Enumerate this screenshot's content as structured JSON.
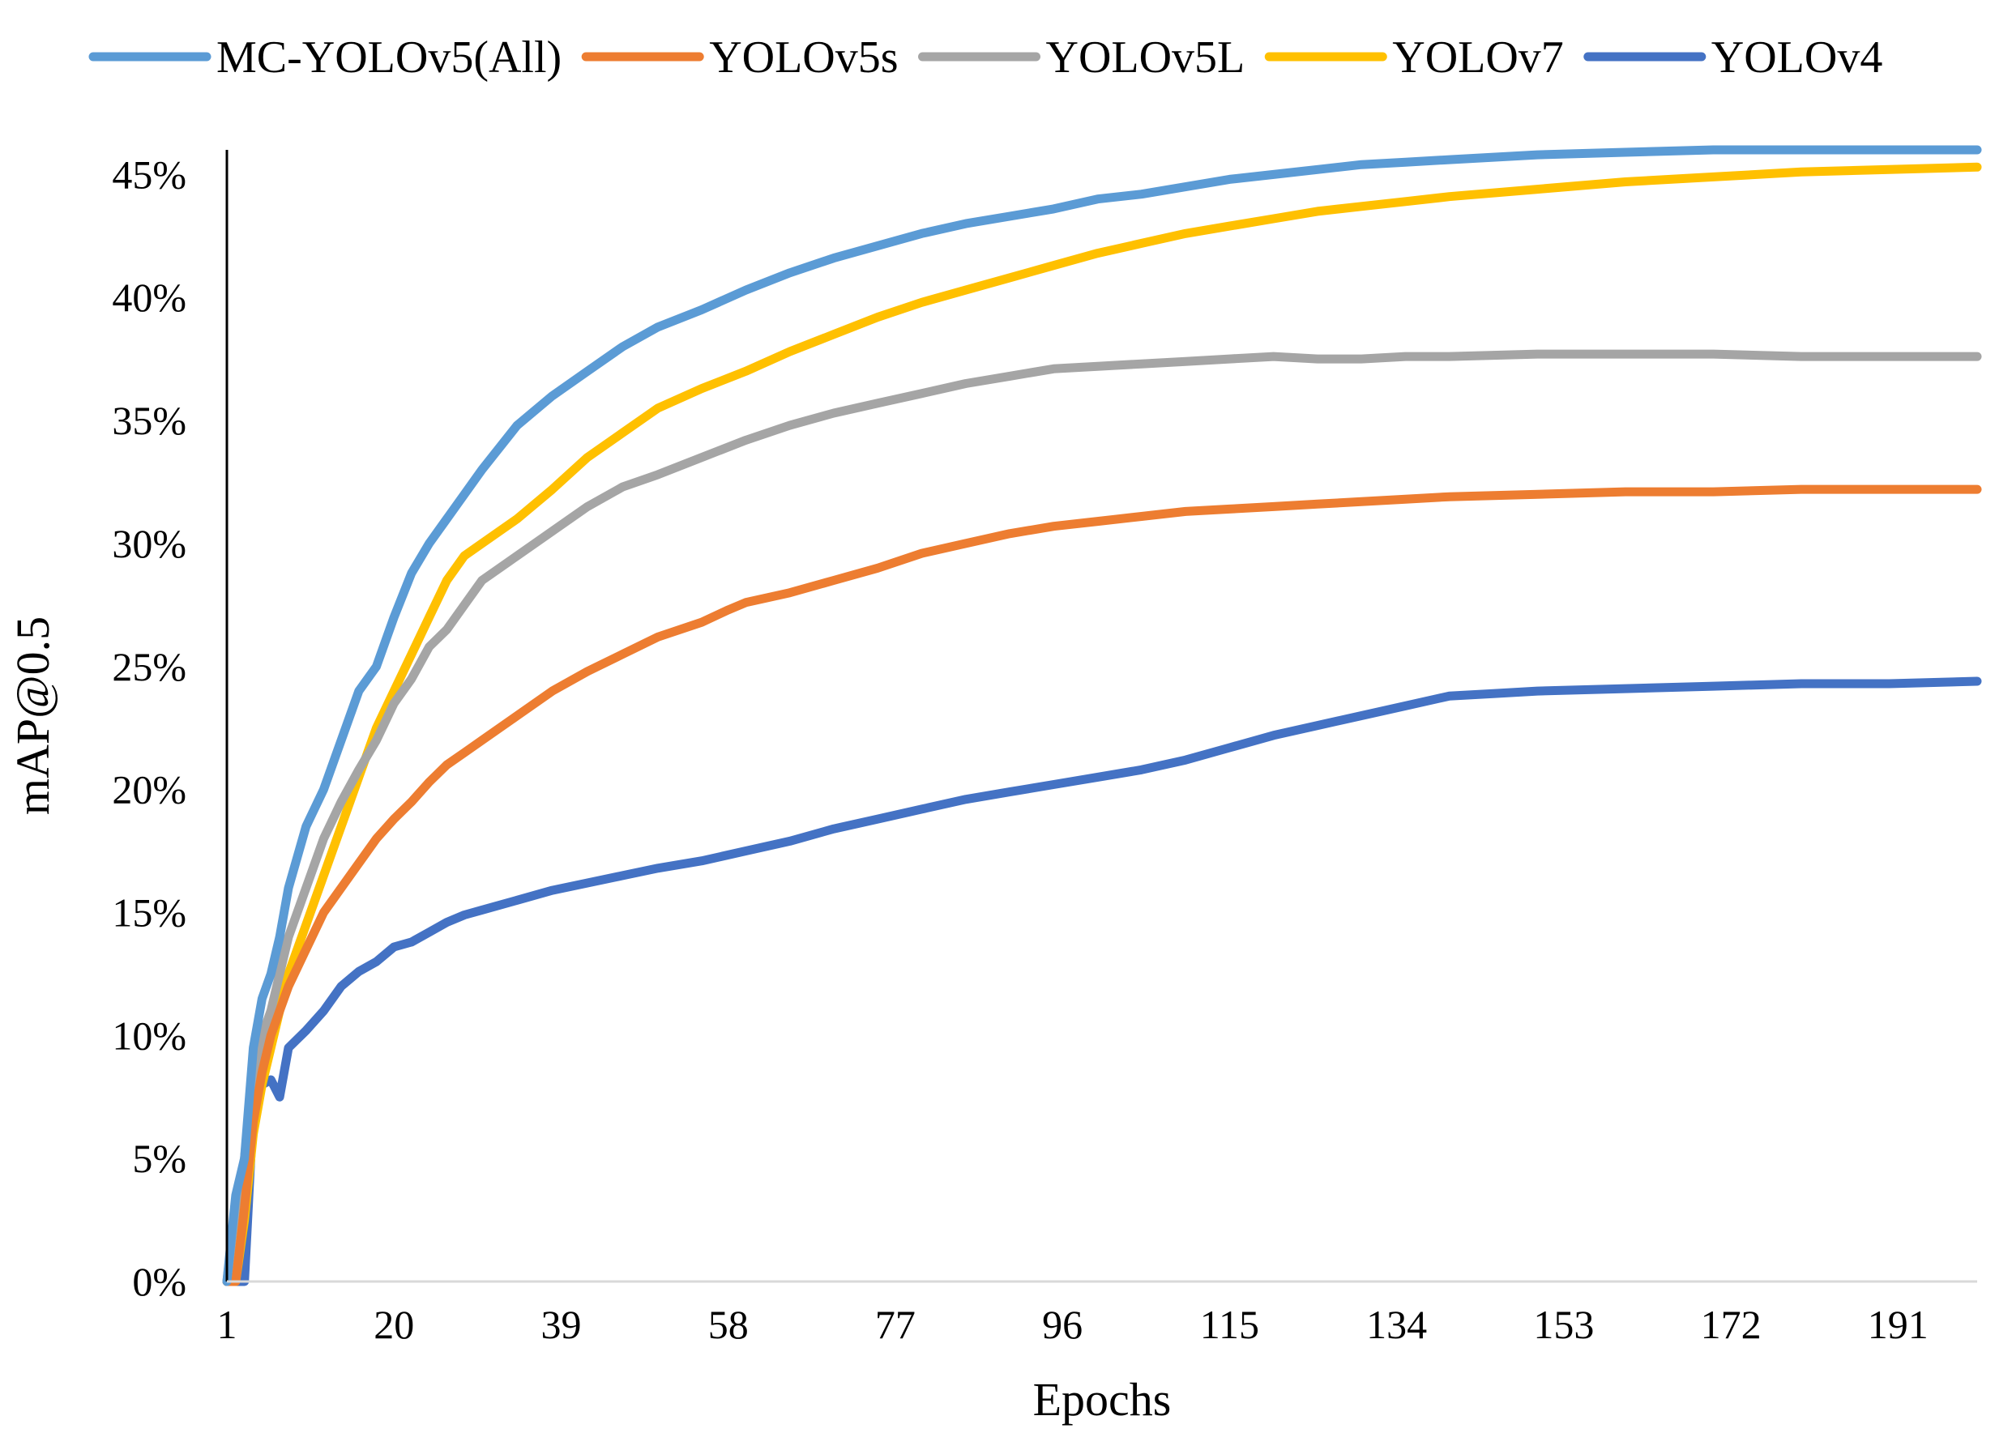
{
  "chart_data": {
    "type": "line",
    "title": "",
    "xlabel": "Epochs",
    "ylabel": "mAP@0.5",
    "xlim": [
      1,
      200
    ],
    "ylim": [
      0,
      46
    ],
    "x_ticks": [
      1,
      20,
      39,
      58,
      77,
      96,
      115,
      134,
      153,
      172,
      191
    ],
    "y_ticks": [
      0,
      5,
      10,
      15,
      20,
      25,
      30,
      35,
      40,
      45
    ],
    "y_tick_labels": [
      "0%",
      "5%",
      "10%",
      "15%",
      "20%",
      "25%",
      "30%",
      "35%",
      "40%",
      "45%"
    ],
    "grid": false,
    "legend_position": "top",
    "series": [
      {
        "name": "MC-YOLOv5(All)",
        "color": "#5B9BD5",
        "points": [
          [
            1,
            0
          ],
          [
            2,
            3.5
          ],
          [
            3,
            5
          ],
          [
            4,
            9.5
          ],
          [
            5,
            11.5
          ],
          [
            6,
            12.5
          ],
          [
            7,
            14
          ],
          [
            8,
            16
          ],
          [
            10,
            18.5
          ],
          [
            12,
            20
          ],
          [
            14,
            22
          ],
          [
            16,
            24
          ],
          [
            18,
            25
          ],
          [
            20,
            27
          ],
          [
            22,
            28.8
          ],
          [
            24,
            30
          ],
          [
            26,
            31
          ],
          [
            28,
            32
          ],
          [
            30,
            33
          ],
          [
            34,
            34.8
          ],
          [
            38,
            36
          ],
          [
            42,
            37
          ],
          [
            46,
            38
          ],
          [
            50,
            38.8
          ],
          [
            55,
            39.5
          ],
          [
            60,
            40.3
          ],
          [
            65,
            41
          ],
          [
            70,
            41.6
          ],
          [
            75,
            42.1
          ],
          [
            80,
            42.6
          ],
          [
            85,
            43
          ],
          [
            90,
            43.3
          ],
          [
            95,
            43.6
          ],
          [
            100,
            44
          ],
          [
            105,
            44.2
          ],
          [
            110,
            44.5
          ],
          [
            115,
            44.8
          ],
          [
            120,
            45
          ],
          [
            125,
            45.2
          ],
          [
            130,
            45.4
          ],
          [
            135,
            45.5
          ],
          [
            140,
            45.6
          ],
          [
            150,
            45.8
          ],
          [
            160,
            45.9
          ],
          [
            170,
            46
          ],
          [
            180,
            46
          ],
          [
            190,
            46
          ],
          [
            200,
            46
          ]
        ]
      },
      {
        "name": "YOLOv5s",
        "color": "#ED7D31",
        "points": [
          [
            1,
            0
          ],
          [
            2,
            0
          ],
          [
            3,
            3
          ],
          [
            4,
            6.5
          ],
          [
            5,
            8.5
          ],
          [
            6,
            10
          ],
          [
            7,
            11
          ],
          [
            8,
            12
          ],
          [
            10,
            13.5
          ],
          [
            12,
            15
          ],
          [
            14,
            16
          ],
          [
            16,
            17
          ],
          [
            18,
            18
          ],
          [
            20,
            18.8
          ],
          [
            22,
            19.5
          ],
          [
            24,
            20.3
          ],
          [
            26,
            21
          ],
          [
            28,
            21.5
          ],
          [
            30,
            22
          ],
          [
            34,
            23
          ],
          [
            38,
            24
          ],
          [
            42,
            24.8
          ],
          [
            46,
            25.5
          ],
          [
            50,
            26.2
          ],
          [
            55,
            26.8
          ],
          [
            58,
            27.3
          ],
          [
            60,
            27.6
          ],
          [
            65,
            28
          ],
          [
            70,
            28.5
          ],
          [
            75,
            29
          ],
          [
            80,
            29.6
          ],
          [
            85,
            30
          ],
          [
            90,
            30.4
          ],
          [
            95,
            30.7
          ],
          [
            100,
            30.9
          ],
          [
            105,
            31.1
          ],
          [
            110,
            31.3
          ],
          [
            115,
            31.4
          ],
          [
            120,
            31.5
          ],
          [
            125,
            31.6
          ],
          [
            130,
            31.7
          ],
          [
            135,
            31.8
          ],
          [
            140,
            31.9
          ],
          [
            150,
            32
          ],
          [
            160,
            32.1
          ],
          [
            170,
            32.1
          ],
          [
            180,
            32.2
          ],
          [
            190,
            32.2
          ],
          [
            200,
            32.2
          ]
        ]
      },
      {
        "name": "YOLOv5L",
        "color": "#A5A5A5",
        "points": [
          [
            1,
            0
          ],
          [
            2,
            3
          ],
          [
            3,
            5
          ],
          [
            4,
            8.5
          ],
          [
            5,
            10
          ],
          [
            6,
            11
          ],
          [
            7,
            12.5
          ],
          [
            8,
            14
          ],
          [
            10,
            16
          ],
          [
            12,
            18
          ],
          [
            14,
            19.5
          ],
          [
            16,
            20.8
          ],
          [
            18,
            22
          ],
          [
            20,
            23.5
          ],
          [
            22,
            24.5
          ],
          [
            24,
            25.8
          ],
          [
            26,
            26.5
          ],
          [
            28,
            27.5
          ],
          [
            30,
            28.5
          ],
          [
            34,
            29.5
          ],
          [
            38,
            30.5
          ],
          [
            42,
            31.5
          ],
          [
            46,
            32.3
          ],
          [
            50,
            32.8
          ],
          [
            55,
            33.5
          ],
          [
            60,
            34.2
          ],
          [
            65,
            34.8
          ],
          [
            70,
            35.3
          ],
          [
            75,
            35.7
          ],
          [
            80,
            36.1
          ],
          [
            85,
            36.5
          ],
          [
            90,
            36.8
          ],
          [
            95,
            37.1
          ],
          [
            100,
            37.2
          ],
          [
            105,
            37.3
          ],
          [
            110,
            37.4
          ],
          [
            115,
            37.5
          ],
          [
            120,
            37.6
          ],
          [
            125,
            37.5
          ],
          [
            130,
            37.5
          ],
          [
            135,
            37.6
          ],
          [
            140,
            37.6
          ],
          [
            150,
            37.7
          ],
          [
            160,
            37.7
          ],
          [
            170,
            37.7
          ],
          [
            180,
            37.6
          ],
          [
            190,
            37.6
          ],
          [
            200,
            37.6
          ]
        ]
      },
      {
        "name": "YOLOv7",
        "color": "#FFC000",
        "points": [
          [
            1,
            0
          ],
          [
            2,
            0
          ],
          [
            3,
            2.5
          ],
          [
            4,
            6
          ],
          [
            5,
            8
          ],
          [
            6,
            9.5
          ],
          [
            7,
            11
          ],
          [
            8,
            12.5
          ],
          [
            10,
            14.5
          ],
          [
            12,
            16.5
          ],
          [
            14,
            18.5
          ],
          [
            16,
            20.5
          ],
          [
            18,
            22.5
          ],
          [
            20,
            24
          ],
          [
            22,
            25.5
          ],
          [
            24,
            27
          ],
          [
            26,
            28.5
          ],
          [
            28,
            29.5
          ],
          [
            30,
            30
          ],
          [
            34,
            31
          ],
          [
            38,
            32.2
          ],
          [
            42,
            33.5
          ],
          [
            46,
            34.5
          ],
          [
            50,
            35.5
          ],
          [
            55,
            36.3
          ],
          [
            60,
            37
          ],
          [
            65,
            37.8
          ],
          [
            70,
            38.5
          ],
          [
            75,
            39.2
          ],
          [
            80,
            39.8
          ],
          [
            85,
            40.3
          ],
          [
            90,
            40.8
          ],
          [
            95,
            41.3
          ],
          [
            100,
            41.8
          ],
          [
            105,
            42.2
          ],
          [
            110,
            42.6
          ],
          [
            115,
            42.9
          ],
          [
            120,
            43.2
          ],
          [
            125,
            43.5
          ],
          [
            130,
            43.7
          ],
          [
            135,
            43.9
          ],
          [
            140,
            44.1
          ],
          [
            150,
            44.4
          ],
          [
            160,
            44.7
          ],
          [
            170,
            44.9
          ],
          [
            180,
            45.1
          ],
          [
            190,
            45.2
          ],
          [
            200,
            45.3
          ]
        ]
      },
      {
        "name": "YOLOv4",
        "color": "#4472C4",
        "points": [
          [
            1,
            0
          ],
          [
            2,
            0
          ],
          [
            3,
            0
          ],
          [
            4,
            7
          ],
          [
            5,
            8
          ],
          [
            6,
            8.2
          ],
          [
            7,
            7.5
          ],
          [
            8,
            9.5
          ],
          [
            10,
            10.2
          ],
          [
            12,
            11
          ],
          [
            14,
            12
          ],
          [
            16,
            12.6
          ],
          [
            18,
            13
          ],
          [
            20,
            13.6
          ],
          [
            22,
            13.8
          ],
          [
            24,
            14.2
          ],
          [
            26,
            14.6
          ],
          [
            28,
            14.9
          ],
          [
            30,
            15.1
          ],
          [
            34,
            15.5
          ],
          [
            38,
            15.9
          ],
          [
            42,
            16.2
          ],
          [
            46,
            16.5
          ],
          [
            50,
            16.8
          ],
          [
            55,
            17.1
          ],
          [
            60,
            17.5
          ],
          [
            65,
            17.9
          ],
          [
            70,
            18.4
          ],
          [
            75,
            18.8
          ],
          [
            80,
            19.2
          ],
          [
            85,
            19.6
          ],
          [
            90,
            19.9
          ],
          [
            95,
            20.2
          ],
          [
            100,
            20.5
          ],
          [
            105,
            20.8
          ],
          [
            110,
            21.2
          ],
          [
            115,
            21.7
          ],
          [
            120,
            22.2
          ],
          [
            125,
            22.6
          ],
          [
            130,
            23
          ],
          [
            135,
            23.4
          ],
          [
            140,
            23.8
          ],
          [
            145,
            23.9
          ],
          [
            150,
            24
          ],
          [
            160,
            24.1
          ],
          [
            170,
            24.2
          ],
          [
            180,
            24.3
          ],
          [
            190,
            24.3
          ],
          [
            200,
            24.4
          ]
        ]
      }
    ]
  }
}
